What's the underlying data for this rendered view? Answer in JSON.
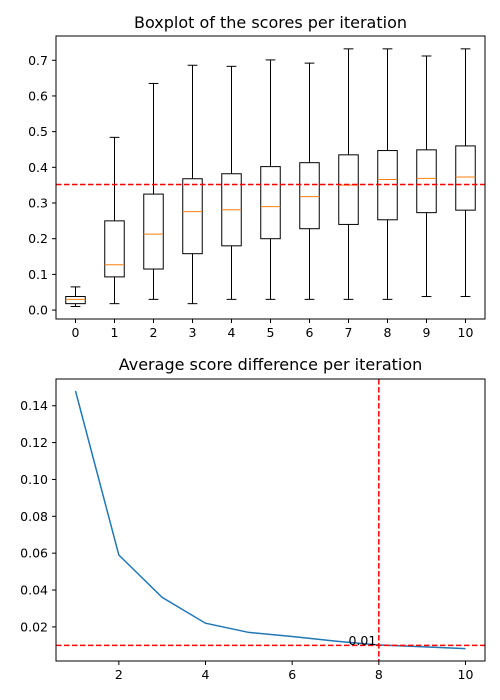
{
  "colors": {
    "box": "#000000",
    "median": "#ff7f0e",
    "line": "#1f77b4",
    "reference": "#ff0000"
  },
  "chart_data": [
    {
      "type": "box",
      "title": "Boxplot of the scores per iteration",
      "xlabel": "",
      "ylabel": "",
      "categories": [
        "0",
        "1",
        "2",
        "3",
        "4",
        "5",
        "6",
        "7",
        "8",
        "9",
        "10"
      ],
      "boxes": [
        {
          "min": 0.01,
          "q1": 0.018,
          "median": 0.03,
          "q3": 0.038,
          "max": 0.065
        },
        {
          "min": 0.018,
          "q1": 0.093,
          "median": 0.127,
          "q3": 0.25,
          "max": 0.484
        },
        {
          "min": 0.03,
          "q1": 0.115,
          "median": 0.213,
          "q3": 0.325,
          "max": 0.635
        },
        {
          "min": 0.018,
          "q1": 0.158,
          "median": 0.276,
          "q3": 0.368,
          "max": 0.686
        },
        {
          "min": 0.03,
          "q1": 0.18,
          "median": 0.281,
          "q3": 0.382,
          "max": 0.683
        },
        {
          "min": 0.03,
          "q1": 0.2,
          "median": 0.29,
          "q3": 0.402,
          "max": 0.701
        },
        {
          "min": 0.03,
          "q1": 0.228,
          "median": 0.318,
          "q3": 0.413,
          "max": 0.692
        },
        {
          "min": 0.03,
          "q1": 0.24,
          "median": 0.35,
          "q3": 0.435,
          "max": 0.732
        },
        {
          "min": 0.03,
          "q1": 0.253,
          "median": 0.366,
          "q3": 0.447,
          "max": 0.732
        },
        {
          "min": 0.038,
          "q1": 0.273,
          "median": 0.369,
          "q3": 0.449,
          "max": 0.712
        },
        {
          "min": 0.038,
          "q1": 0.28,
          "median": 0.373,
          "q3": 0.46,
          "max": 0.732
        }
      ],
      "reference_line": {
        "axis": "y",
        "value": 0.352
      },
      "xlim": [
        -0.5,
        10.5
      ],
      "ylim": [
        -0.025,
        0.768
      ],
      "yticks": [
        0.0,
        0.1,
        0.2,
        0.3,
        0.4,
        0.5,
        0.6,
        0.7
      ],
      "ytick_labels": [
        "0.0",
        "0.1",
        "0.2",
        "0.3",
        "0.4",
        "0.5",
        "0.6",
        "0.7"
      ],
      "grid": false
    },
    {
      "type": "line",
      "title": "Average score difference per iteration",
      "xlabel": "",
      "ylabel": "",
      "x": [
        1,
        2,
        3,
        4,
        5,
        6,
        7,
        8,
        9,
        10
      ],
      "y": [
        0.148,
        0.059,
        0.036,
        0.022,
        0.017,
        0.0148,
        0.0123,
        0.0102,
        0.0092,
        0.0082
      ],
      "reference_lines": [
        {
          "axis": "y",
          "value": 0.01
        },
        {
          "axis": "x",
          "value": 8
        }
      ],
      "annotation": {
        "text": "0.01",
        "x": 7.3,
        "y": 0.0102
      },
      "xlim": [
        0.55,
        10.45
      ],
      "ylim": [
        0.0015,
        0.1545
      ],
      "xticks": [
        2,
        4,
        6,
        8,
        10
      ],
      "xtick_labels": [
        "2",
        "4",
        "6",
        "8",
        "10"
      ],
      "yticks": [
        0.02,
        0.04,
        0.06,
        0.08,
        0.1,
        0.12,
        0.14
      ],
      "ytick_labels": [
        "0.02",
        "0.04",
        "0.06",
        "0.08",
        "0.10",
        "0.12",
        "0.14"
      ],
      "grid": false
    }
  ]
}
